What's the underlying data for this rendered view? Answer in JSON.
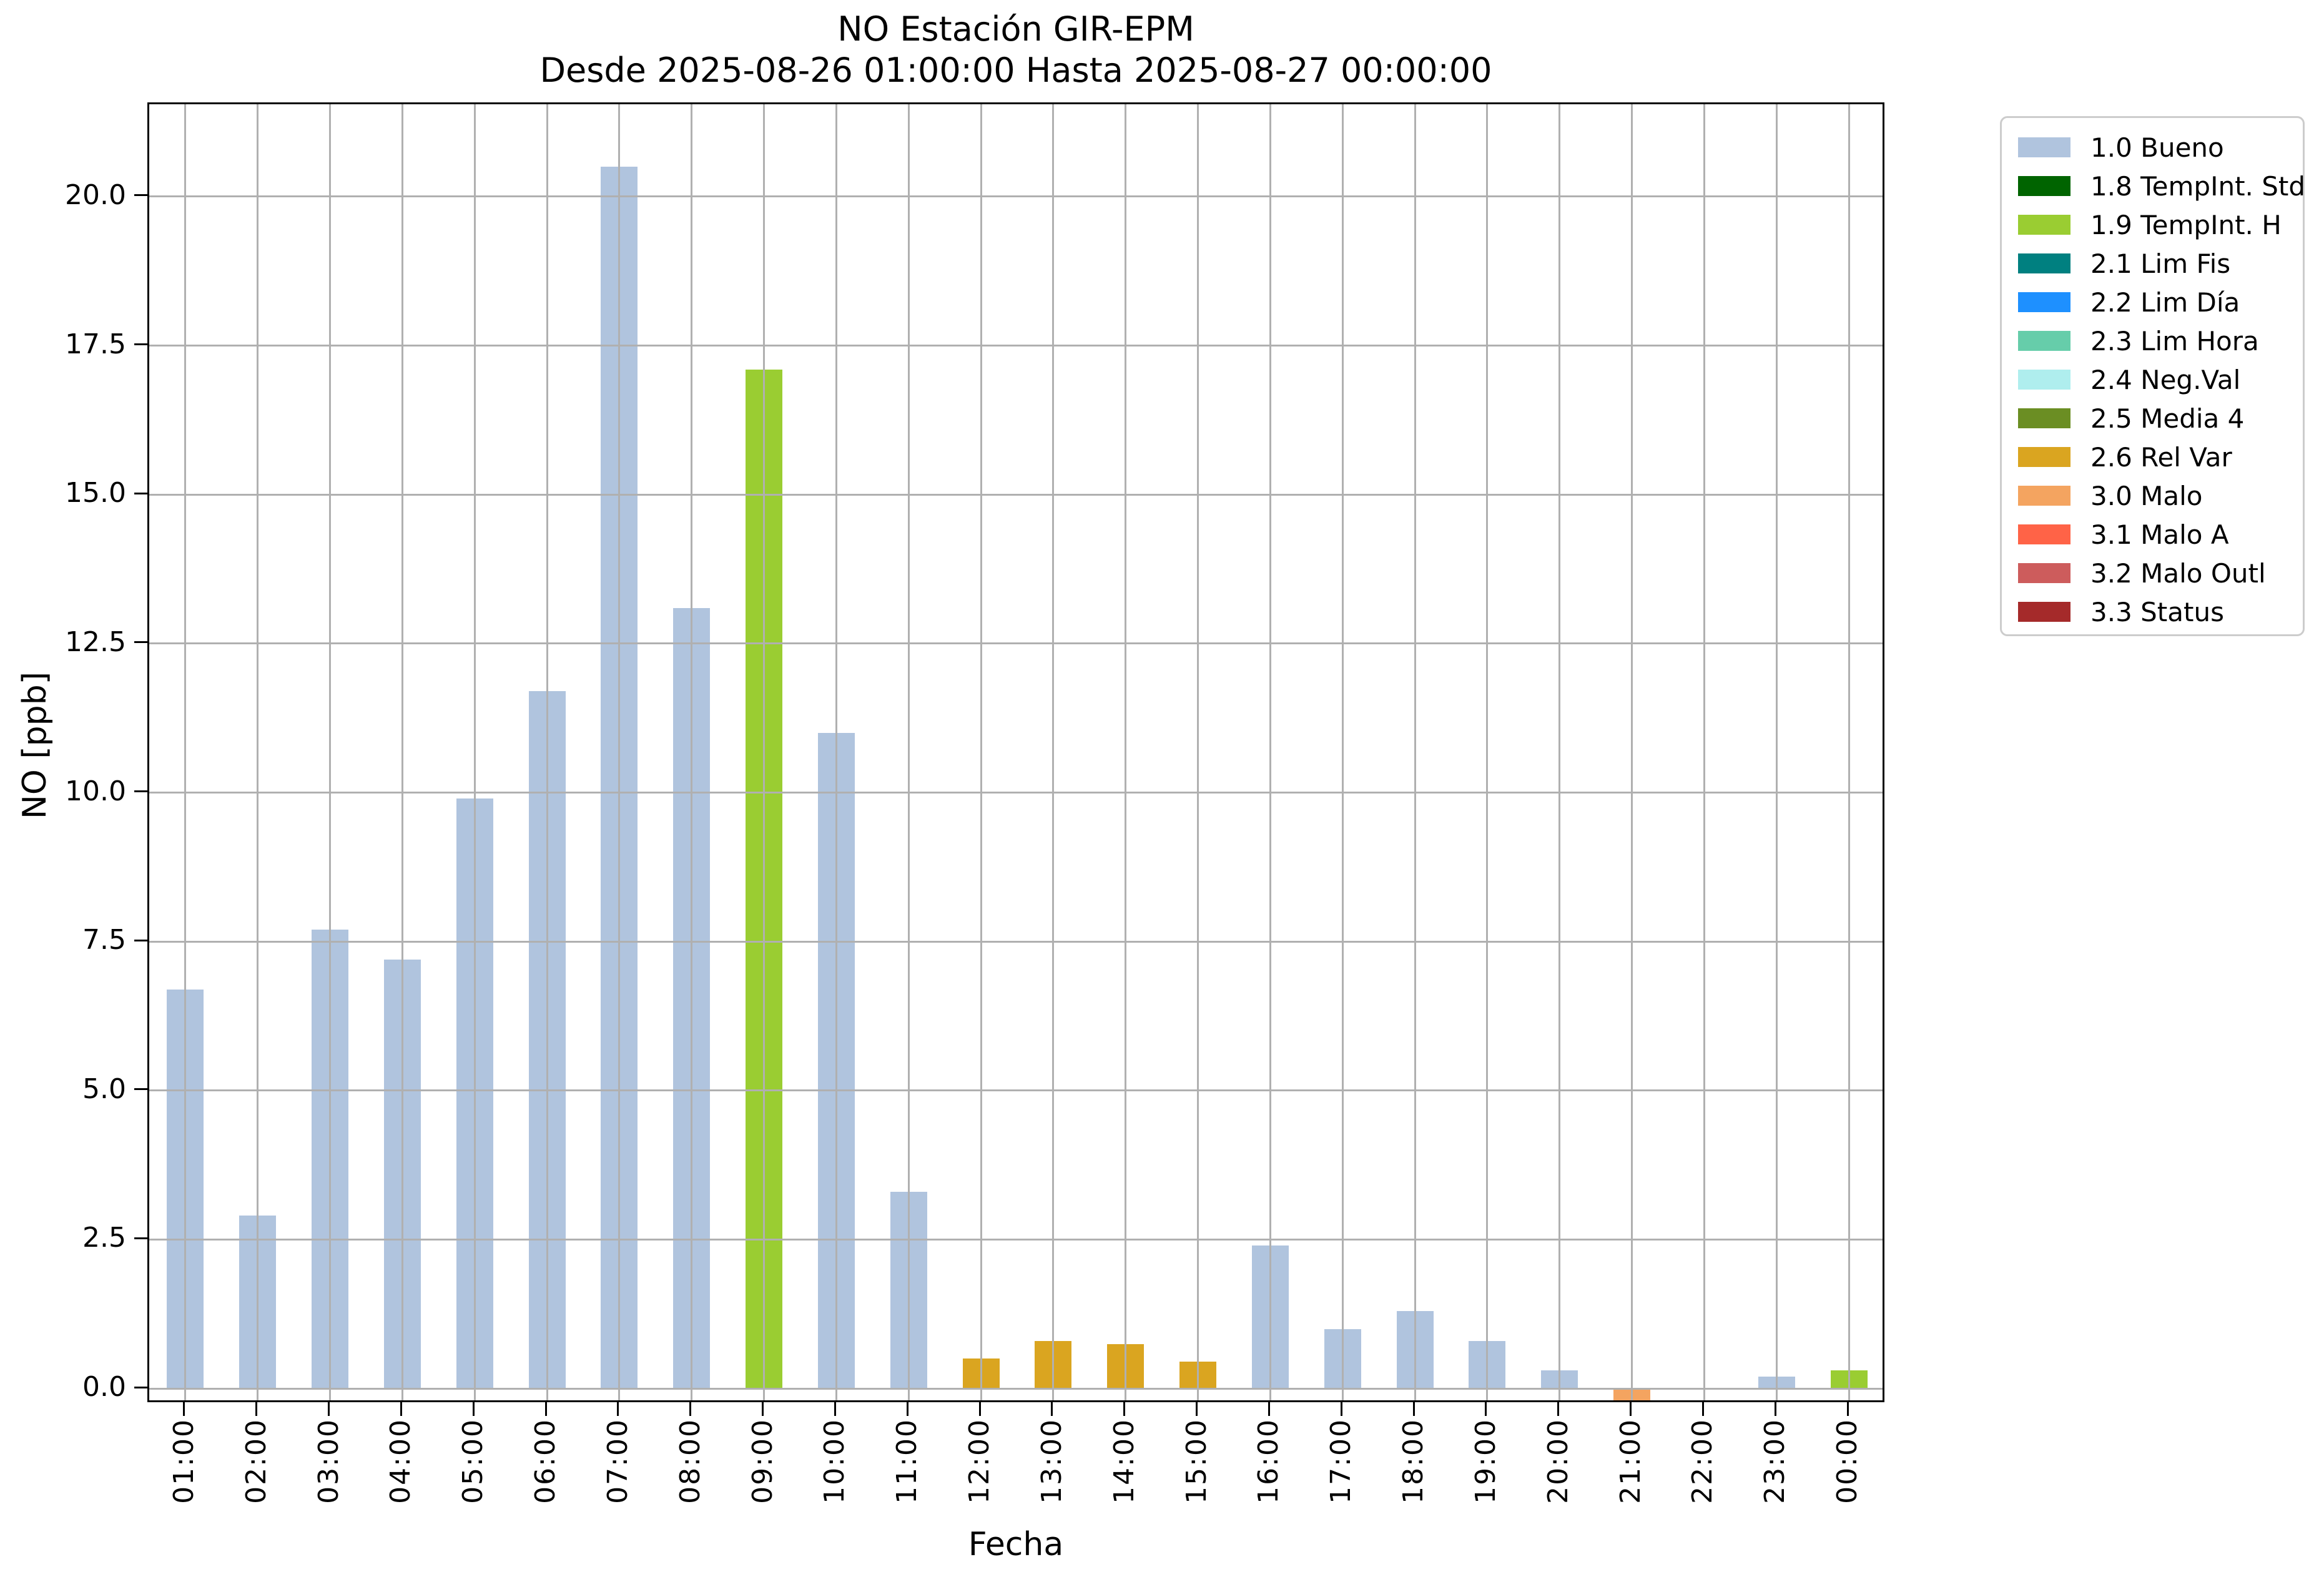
{
  "chart_data": {
    "type": "bar",
    "title": "NO Estación GIR-EPM",
    "subtitle": "Desde 2025-08-26 01:00:00 Hasta 2025-08-27 00:00:00",
    "xlabel": "Fecha",
    "ylabel": "NO [ppb]",
    "categories": [
      "01:00",
      "02:00",
      "03:00",
      "04:00",
      "05:00",
      "06:00",
      "07:00",
      "08:00",
      "09:00",
      "10:00",
      "11:00",
      "12:00",
      "13:00",
      "14:00",
      "15:00",
      "16:00",
      "17:00",
      "18:00",
      "19:00",
      "20:00",
      "21:00",
      "22:00",
      "23:00",
      "00:00"
    ],
    "values": [
      6.7,
      2.9,
      7.7,
      7.2,
      9.9,
      11.7,
      20.5,
      13.1,
      17.1,
      11.0,
      3.3,
      0.5,
      0.8,
      0.75,
      0.45,
      2.4,
      1.0,
      1.3,
      0.8,
      0.3,
      -0.2,
      0.0,
      0.2,
      0.3
    ],
    "flags": [
      "1.0 Bueno",
      "1.0 Bueno",
      "1.0 Bueno",
      "1.0 Bueno",
      "1.0 Bueno",
      "1.0 Bueno",
      "1.0 Bueno",
      "1.0 Bueno",
      "1.9 TempInt. H",
      "1.0 Bueno",
      "1.0 Bueno",
      "2.6 Rel Var",
      "2.6 Rel Var",
      "2.6 Rel Var",
      "2.6 Rel Var",
      "1.0 Bueno",
      "1.0 Bueno",
      "1.0 Bueno",
      "1.0 Bueno",
      "1.0 Bueno",
      "3.0 Malo",
      "1.0 Bueno",
      "1.0 Bueno",
      "1.9 TempInt. H"
    ],
    "ylim": [
      -0.25,
      21.55
    ],
    "yticks": [
      0.0,
      2.5,
      5.0,
      7.5,
      10.0,
      12.5,
      15.0,
      17.5,
      20.0
    ],
    "ytick_labels": [
      "0.0",
      "2.5",
      "5.0",
      "7.5",
      "10.0",
      "12.5",
      "15.0",
      "17.5",
      "20.0"
    ],
    "grid": "on",
    "grid_color": "#b0b0b0",
    "legend_position": "upper right outside",
    "legend": [
      {
        "label": "1.0 Bueno",
        "color": "#B0C4DE"
      },
      {
        "label": "1.8 TempInt. Std",
        "color": "#006400"
      },
      {
        "label": "1.9 TempInt. H",
        "color": "#9ACD32"
      },
      {
        "label": "2.1 Lim Fis",
        "color": "#008080"
      },
      {
        "label": "2.2 Lim Día",
        "color": "#1E90FF"
      },
      {
        "label": "2.3 Lim Hora",
        "color": "#66CDAA"
      },
      {
        "label": "2.4 Neg.Val",
        "color": "#AFEEEE"
      },
      {
        "label": "2.5 Media 4",
        "color": "#6B8E23"
      },
      {
        "label": "2.6 Rel Var",
        "color": "#DAA520"
      },
      {
        "label": "3.0 Malo",
        "color": "#F4A460"
      },
      {
        "label": "3.1 Malo A",
        "color": "#FF6347"
      },
      {
        "label": "3.2 Malo Outl",
        "color": "#CD5C5C"
      },
      {
        "label": "3.3 Status",
        "color": "#A52A2A"
      }
    ]
  }
}
